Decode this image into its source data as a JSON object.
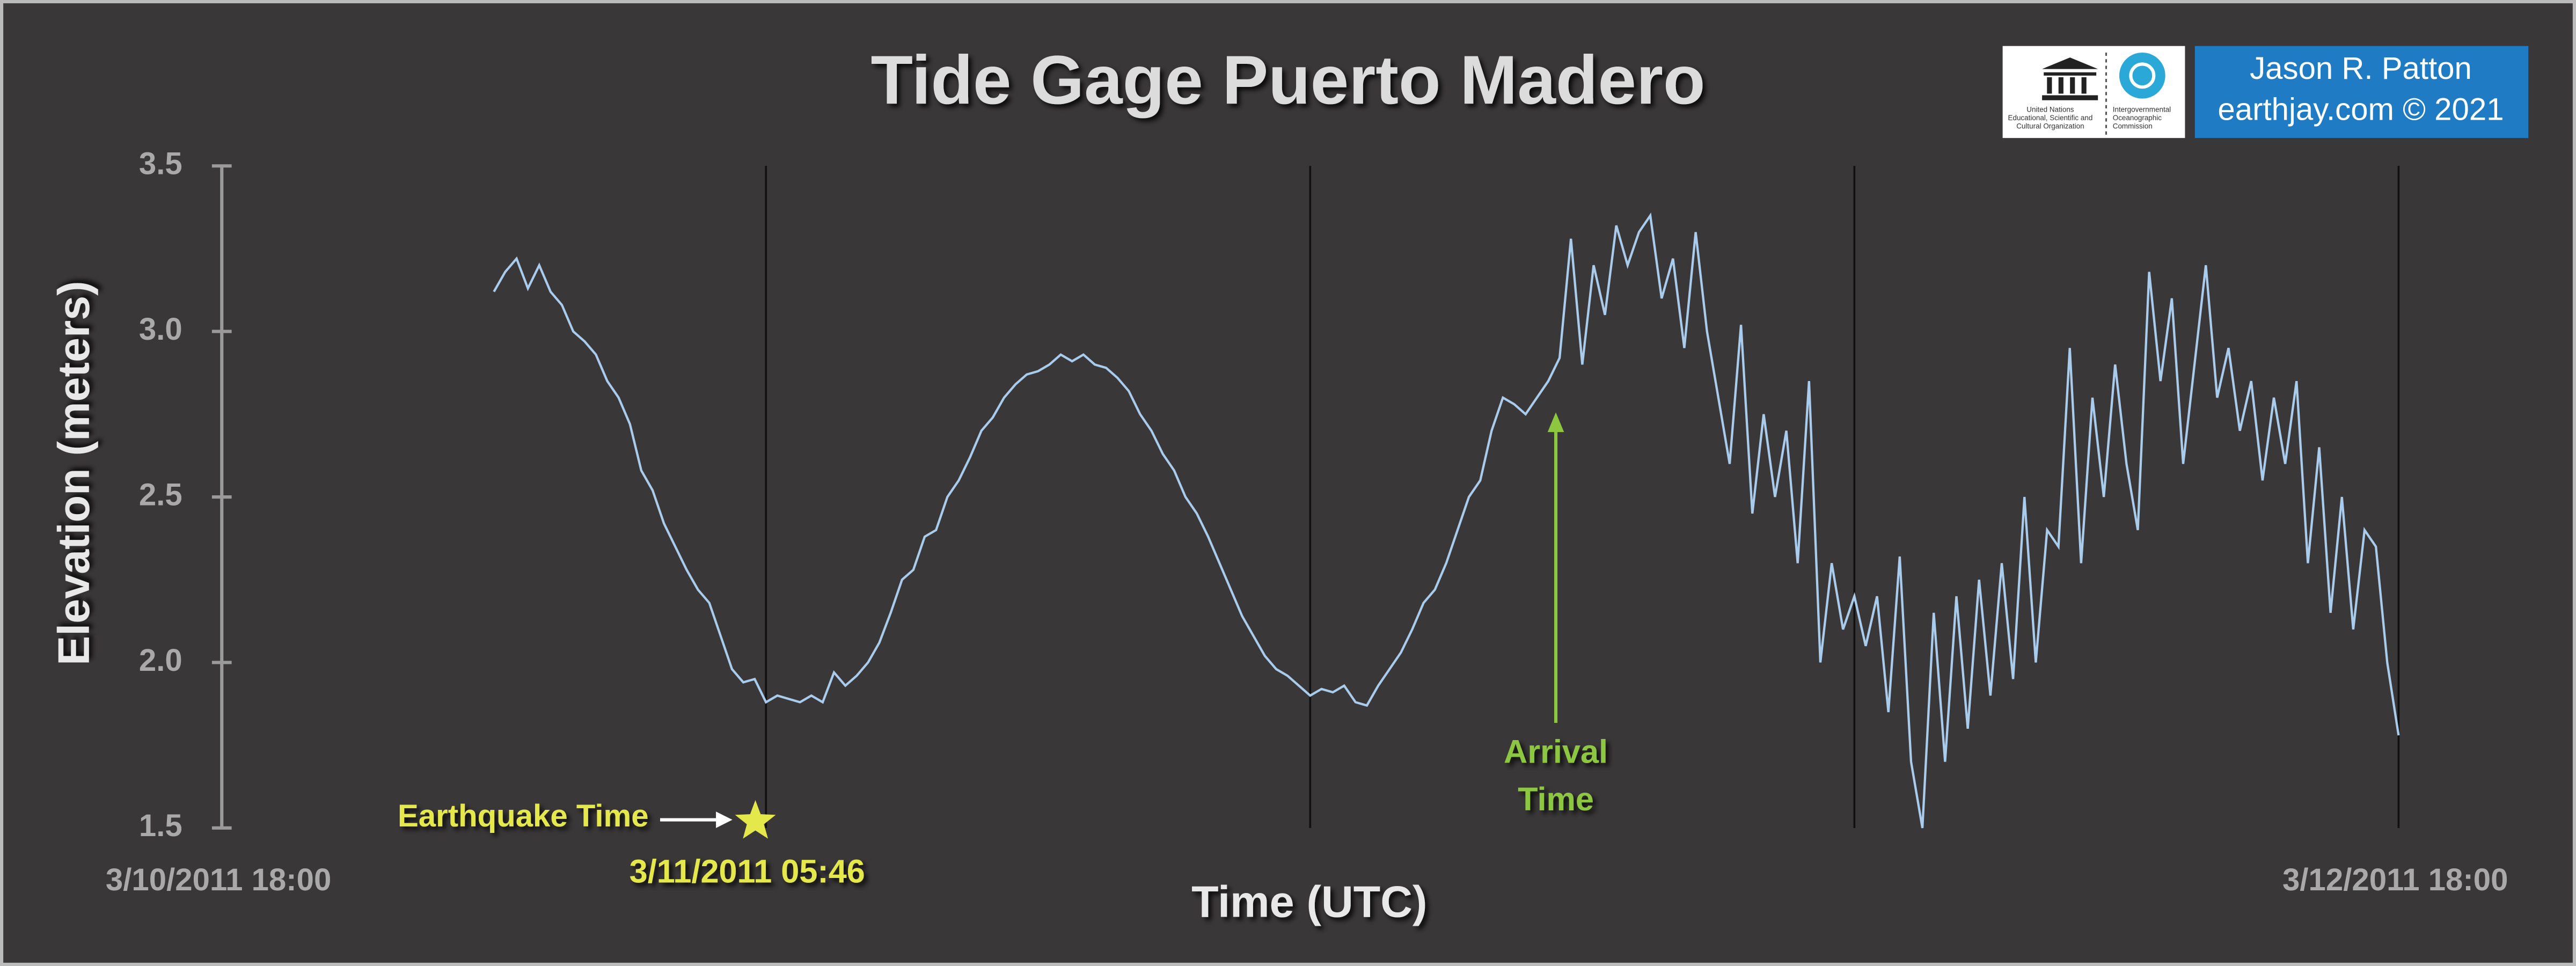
{
  "chart_data": {
    "type": "line",
    "title": "Tide Gage Puerto Madero",
    "xlabel": "Time (UTC)",
    "ylabel": "Elevation (meters)",
    "color": "#a9cbec",
    "ylim": [
      1.5,
      3.5
    ],
    "yticks": [
      1.5,
      {
        "value": 2,
        "label": "2.0"
      },
      2.5,
      {
        "value": 3,
        "label": "3.0"
      },
      3.5
    ],
    "xlim": [
      "3/10/2011 18:00",
      "3/12/2011 18:00"
    ],
    "xticks": [
      "3/10/2011 18:00",
      "3/12/2011 18:00"
    ],
    "xgrid": [
      "3/11/2011 06:00",
      "3/11/2011 18:00",
      "3/12/2011 06:00",
      "3/12/2011 18:00"
    ],
    "x": [
      "3/11/2011 00:00",
      "3/11/2011 00:15",
      "3/11/2011 00:30",
      "3/11/2011 00:45",
      "3/11/2011 01:00",
      "3/11/2011 01:15",
      "3/11/2011 01:30",
      "3/11/2011 01:45",
      "3/11/2011 02:00",
      "3/11/2011 02:15",
      "3/11/2011 02:30",
      "3/11/2011 02:45",
      "3/11/2011 03:00",
      "3/11/2011 03:15",
      "3/11/2011 03:30",
      "3/11/2011 03:45",
      "3/11/2011 04:00",
      "3/11/2011 04:15",
      "3/11/2011 04:30",
      "3/11/2011 04:45",
      "3/11/2011 05:00",
      "3/11/2011 05:15",
      "3/11/2011 05:30",
      "3/11/2011 05:45",
      "3/11/2011 06:00",
      "3/11/2011 06:15",
      "3/11/2011 06:30",
      "3/11/2011 06:45",
      "3/11/2011 07:00",
      "3/11/2011 07:15",
      "3/11/2011 07:30",
      "3/11/2011 07:45",
      "3/11/2011 08:00",
      "3/11/2011 08:15",
      "3/11/2011 08:30",
      "3/11/2011 08:45",
      "3/11/2011 09:00",
      "3/11/2011 09:15",
      "3/11/2011 09:30",
      "3/11/2011 09:45",
      "3/11/2011 10:00",
      "3/11/2011 10:15",
      "3/11/2011 10:30",
      "3/11/2011 10:45",
      "3/11/2011 11:00",
      "3/11/2011 11:15",
      "3/11/2011 11:30",
      "3/11/2011 11:45",
      "3/11/2011 12:00",
      "3/11/2011 12:15",
      "3/11/2011 12:30",
      "3/11/2011 12:45",
      "3/11/2011 13:00",
      "3/11/2011 13:15",
      "3/11/2011 13:30",
      "3/11/2011 13:45",
      "3/11/2011 14:00",
      "3/11/2011 14:15",
      "3/11/2011 14:30",
      "3/11/2011 14:45",
      "3/11/2011 15:00",
      "3/11/2011 15:15",
      "3/11/2011 15:30",
      "3/11/2011 15:45",
      "3/11/2011 16:00",
      "3/11/2011 16:15",
      "3/11/2011 16:30",
      "3/11/2011 16:45",
      "3/11/2011 17:00",
      "3/11/2011 17:15",
      "3/11/2011 17:30",
      "3/11/2011 17:45",
      "3/11/2011 18:00",
      "3/11/2011 18:15",
      "3/11/2011 18:30",
      "3/11/2011 18:45",
      "3/11/2011 19:00",
      "3/11/2011 19:15",
      "3/11/2011 19:30",
      "3/11/2011 19:45",
      "3/11/2011 20:00",
      "3/11/2011 20:15",
      "3/11/2011 20:30",
      "3/11/2011 20:45",
      "3/11/2011 21:00",
      "3/11/2011 21:15",
      "3/11/2011 21:30",
      "3/11/2011 21:45",
      "3/11/2011 22:00",
      "3/11/2011 22:15",
      "3/11/2011 22:30",
      "3/11/2011 22:45",
      "3/11/2011 23:00",
      "3/11/2011 23:15",
      "3/11/2011 23:30",
      "3/11/2011 23:45",
      "3/12/2011 00:00",
      "3/12/2011 00:15",
      "3/12/2011 00:30",
      "3/12/2011 00:45",
      "3/12/2011 01:00",
      "3/12/2011 01:15",
      "3/12/2011 01:30",
      "3/12/2011 01:45",
      "3/12/2011 02:00",
      "3/12/2011 02:15",
      "3/12/2011 02:30",
      "3/12/2011 02:45",
      "3/12/2011 03:00",
      "3/12/2011 03:15",
      "3/12/2011 03:30",
      "3/12/2011 03:45",
      "3/12/2011 04:00",
      "3/12/2011 04:15",
      "3/12/2011 04:30",
      "3/12/2011 04:45",
      "3/12/2011 05:00",
      "3/12/2011 05:15",
      "3/12/2011 05:30",
      "3/12/2011 05:45",
      "3/12/2011 06:00",
      "3/12/2011 06:15",
      "3/12/2011 06:30",
      "3/12/2011 06:45",
      "3/12/2011 07:00",
      "3/12/2011 07:15",
      "3/12/2011 07:30",
      "3/12/2011 07:45",
      "3/12/2011 08:00",
      "3/12/2011 08:15",
      "3/12/2011 08:30",
      "3/12/2011 08:45",
      "3/12/2011 09:00",
      "3/12/2011 09:15",
      "3/12/2011 09:30",
      "3/12/2011 09:45",
      "3/12/2011 10:00",
      "3/12/2011 10:15",
      "3/12/2011 10:30",
      "3/12/2011 10:45",
      "3/12/2011 11:00",
      "3/12/2011 11:15",
      "3/12/2011 11:30",
      "3/12/2011 11:45",
      "3/12/2011 12:00",
      "3/12/2011 12:15",
      "3/12/2011 12:30",
      "3/12/2011 12:45",
      "3/12/2011 13:00",
      "3/12/2011 13:15",
      "3/12/2011 13:30",
      "3/12/2011 13:45",
      "3/12/2011 14:00",
      "3/12/2011 14:15",
      "3/12/2011 14:30",
      "3/12/2011 14:45",
      "3/12/2011 15:00",
      "3/12/2011 15:15",
      "3/12/2011 15:30",
      "3/12/2011 15:45",
      "3/12/2011 16:00",
      "3/12/2011 16:15",
      "3/12/2011 16:30",
      "3/12/2011 16:45",
      "3/12/2011 17:00",
      "3/12/2011 17:15",
      "3/12/2011 17:30",
      "3/12/2011 17:45",
      "3/12/2011 18:00"
    ],
    "values": [
      3.12,
      3.18,
      3.22,
      3.13,
      3.2,
      3.12,
      3.08,
      3.0,
      2.97,
      2.93,
      2.85,
      2.8,
      2.72,
      2.58,
      2.52,
      2.42,
      2.35,
      2.28,
      2.22,
      2.18,
      2.08,
      1.98,
      1.94,
      1.95,
      1.88,
      1.9,
      1.89,
      1.88,
      1.9,
      1.88,
      1.97,
      1.93,
      1.96,
      2.0,
      2.06,
      2.15,
      2.25,
      2.28,
      2.38,
      2.4,
      2.5,
      2.55,
      2.62,
      2.7,
      2.74,
      2.8,
      2.84,
      2.87,
      2.88,
      2.9,
      2.93,
      2.91,
      2.93,
      2.9,
      2.89,
      2.86,
      2.82,
      2.75,
      2.7,
      2.63,
      2.58,
      2.5,
      2.45,
      2.38,
      2.3,
      2.22,
      2.14,
      2.08,
      2.02,
      1.98,
      1.96,
      1.93,
      1.9,
      1.92,
      1.91,
      1.93,
      1.88,
      1.87,
      1.93,
      1.98,
      2.03,
      2.1,
      2.18,
      2.22,
      2.3,
      2.4,
      2.5,
      2.55,
      2.7,
      2.8,
      2.78,
      2.75,
      2.8,
      2.85,
      2.92,
      3.28,
      2.9,
      3.2,
      3.05,
      3.32,
      3.2,
      3.3,
      3.35,
      3.1,
      3.22,
      2.95,
      3.3,
      3.0,
      2.8,
      2.6,
      3.02,
      2.45,
      2.75,
      2.5,
      2.7,
      2.3,
      2.85,
      2.0,
      2.3,
      2.1,
      2.2,
      2.05,
      2.2,
      1.85,
      2.32,
      1.7,
      1.5,
      2.15,
      1.7,
      2.2,
      1.8,
      2.25,
      1.9,
      2.3,
      1.95,
      2.5,
      2.0,
      2.4,
      2.35,
      2.95,
      2.3,
      2.8,
      2.5,
      2.9,
      2.6,
      2.4,
      3.18,
      2.85,
      3.1,
      2.6,
      2.9,
      3.2,
      2.8,
      2.95,
      2.7,
      2.85,
      2.55,
      2.8,
      2.6,
      2.85,
      2.3,
      2.65,
      2.15,
      2.5,
      2.1,
      2.4,
      2.35,
      2.0,
      1.78
    ],
    "annotations": [
      {
        "text": "Earthquake Time",
        "x": "3/11/2011 05:46",
        "color": "#e5e84b"
      },
      {
        "text": [
          "Arrival",
          "Time"
        ],
        "x": "3/11/2011 23:25",
        "color": "#8dc63f"
      }
    ],
    "logo_text": [
      [
        "United Nations",
        "Educational, Scientific and",
        "Cultural Organization"
      ],
      [
        "Intergovernmental",
        "Oceanographic",
        "Commission"
      ]
    ],
    "credit": [
      "Jason R. Patton",
      "earthjay.com © 2021"
    ]
  }
}
